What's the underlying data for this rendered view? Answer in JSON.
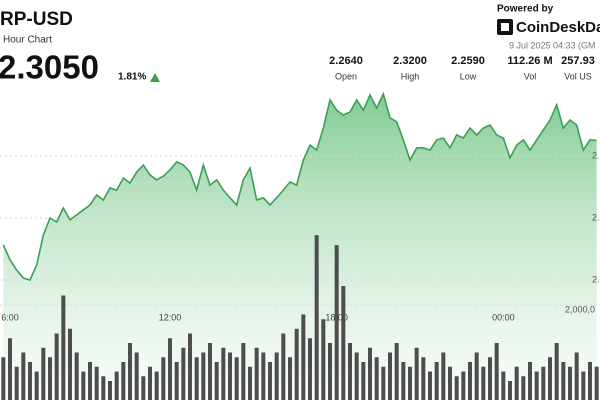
{
  "header": {
    "title": "RP-USD",
    "subtitle": "Hour Chart",
    "price": "2.3050",
    "change": "1.81%",
    "powered": "Powered by",
    "brand": "CoinDeskDat",
    "timestamp": "9 Jul 2025 04:33 (GM"
  },
  "stats": [
    {
      "value": "2.2640",
      "label": "Open"
    },
    {
      "value": "2.3200",
      "label": "High"
    },
    {
      "value": "2.2590",
      "label": "Low"
    },
    {
      "value": "112.26 M",
      "label": "Vol"
    },
    {
      "value": "257.93",
      "label": "Vol US"
    }
  ],
  "chart_data": {
    "type": "line",
    "categories": [
      "6:00",
      null,
      null,
      null,
      null,
      null,
      null,
      null,
      null,
      null,
      null,
      null,
      null,
      null,
      null,
      null,
      null,
      null,
      null,
      null,
      null,
      null,
      null,
      null,
      null,
      "12:00",
      null,
      null,
      null,
      null,
      null,
      null,
      null,
      null,
      null,
      null,
      null,
      null,
      null,
      null,
      null,
      null,
      null,
      null,
      null,
      null,
      null,
      null,
      null,
      null,
      "18:00",
      null,
      null,
      null,
      null,
      null,
      null,
      null,
      null,
      null,
      null,
      null,
      null,
      null,
      null,
      null,
      null,
      null,
      null,
      null,
      null,
      null,
      null,
      null,
      null,
      "00:00",
      null,
      null,
      null,
      null,
      null,
      null,
      null,
      null,
      null,
      null,
      null,
      null,
      null,
      null
    ],
    "series": [
      {
        "color": "#3d9e55",
        "values": [
          2.2713,
          2.2665,
          2.2632,
          2.2606,
          2.26,
          2.2648,
          2.2745,
          2.28,
          2.2787,
          2.2832,
          2.2794,
          2.281,
          2.2826,
          2.2842,
          2.2874,
          2.2858,
          2.2897,
          2.289,
          2.2929,
          2.2913,
          2.2948,
          2.2971,
          2.2939,
          2.2923,
          2.2935,
          2.2955,
          2.2981,
          2.2971,
          2.2948,
          2.289,
          2.2971,
          2.2906,
          2.2923,
          2.289,
          2.2865,
          2.2842,
          2.2923,
          2.2961,
          2.2858,
          2.2865,
          2.2842,
          2.2865,
          2.289,
          2.2916,
          2.2906,
          2.2987,
          2.3035,
          2.3019,
          2.309,
          2.3181,
          2.3148,
          2.3132,
          2.3142,
          2.3181,
          2.3148,
          2.3197,
          2.3155,
          2.32,
          2.3123,
          2.311,
          2.3052,
          2.2987,
          2.3026,
          2.3026,
          2.3019,
          2.3052,
          2.3058,
          2.3026,
          2.3068,
          2.3058,
          2.309,
          2.3068,
          2.309,
          2.31,
          2.3068,
          2.3058,
          2.2994,
          2.3035,
          2.3052,
          2.3019,
          2.3052,
          2.3084,
          2.3116,
          2.3165,
          2.309,
          2.3116,
          2.31,
          2.3019,
          2.3052,
          2.305
        ]
      },
      {
        "type": "bar",
        "axis": "y2",
        "color": "#4d4d4d",
        "values": [
          900000,
          1300000,
          700000,
          1000000,
          800000,
          600000,
          1100000,
          900000,
          1400000,
          2200000,
          1500000,
          1000000,
          600000,
          800000,
          700000,
          500000,
          400000,
          600000,
          800000,
          1200000,
          1000000,
          500000,
          700000,
          600000,
          900000,
          1300000,
          800000,
          1100000,
          1400000,
          900000,
          1000000,
          1200000,
          800000,
          1100000,
          1000000,
          900000,
          1200000,
          700000,
          1100000,
          1000000,
          800000,
          1000000,
          1400000,
          900000,
          1500000,
          1800000,
          1300000,
          3470000,
          1700000,
          1200000,
          3260000,
          2400000,
          1200000,
          1000000,
          800000,
          1100000,
          900000,
          700000,
          1000000,
          1200000,
          800000,
          700000,
          1100000,
          900000,
          600000,
          800000,
          1000000,
          700000,
          500000,
          600000,
          800000,
          1000000,
          700000,
          900000,
          1200000,
          600000,
          400000,
          700000,
          500000,
          800000,
          600000,
          700000,
          900000,
          1200000,
          800000,
          700000,
          1000000,
          600000,
          800000,
          700000
        ]
      }
    ],
    "ylim": [
      2.24,
      2.34
    ],
    "yticks": [
      {
        "value": 2.26,
        "label": "2."
      },
      {
        "value": 2.28,
        "label": "2."
      },
      {
        "value": 2.3,
        "label": "2."
      }
    ],
    "y2lim": [
      0,
      4000000
    ],
    "y2ticks": [
      {
        "value": 2000000,
        "label": "2,000,0"
      }
    ],
    "grid": true
  }
}
